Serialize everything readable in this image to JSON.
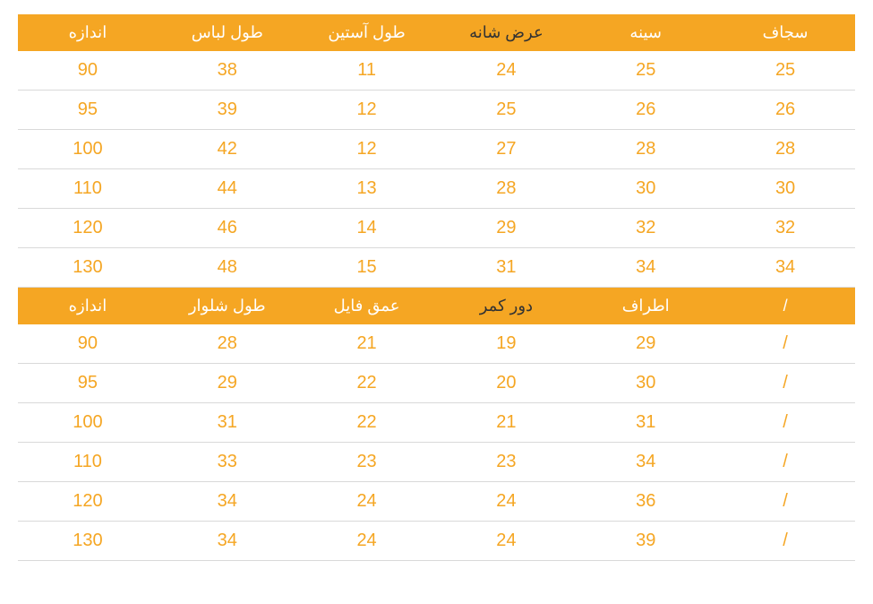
{
  "colors": {
    "header_bg": "#f5a623",
    "header_text": "#ffffff",
    "header_text_dark": "#333333",
    "cell_text": "#f5a623",
    "row_border": "#d9d9d9",
    "background": "#ffffff"
  },
  "typography": {
    "header_fontsize": 18,
    "cell_fontsize": 20,
    "font_family": "Tahoma, Arial, sans-serif"
  },
  "table1": {
    "type": "table",
    "headers": [
      {
        "label": "اندازه",
        "dark": false
      },
      {
        "label": "طول لباس",
        "dark": false
      },
      {
        "label": "طول آستین",
        "dark": false
      },
      {
        "label": "عرض شانه",
        "dark": true
      },
      {
        "label": "سینه",
        "dark": false
      },
      {
        "label": "سجاف",
        "dark": false
      }
    ],
    "rows": [
      [
        "90",
        "38",
        "11",
        "24",
        "25",
        "25"
      ],
      [
        "95",
        "39",
        "12",
        "25",
        "26",
        "26"
      ],
      [
        "100",
        "42",
        "12",
        "27",
        "28",
        "28"
      ],
      [
        "110",
        "44",
        "13",
        "28",
        "30",
        "30"
      ],
      [
        "120",
        "46",
        "14",
        "29",
        "32",
        "32"
      ],
      [
        "130",
        "48",
        "15",
        "31",
        "34",
        "34"
      ]
    ]
  },
  "table2": {
    "type": "table",
    "headers": [
      {
        "label": "اندازه",
        "dark": false
      },
      {
        "label": "طول شلوار",
        "dark": false
      },
      {
        "label": "عمق فایل",
        "dark": false
      },
      {
        "label": "دور کمر",
        "dark": true
      },
      {
        "label": "اطراف",
        "dark": false
      },
      {
        "label": "/",
        "dark": false
      }
    ],
    "rows": [
      [
        "90",
        "28",
        "21",
        "19",
        "29",
        "/"
      ],
      [
        "95",
        "29",
        "22",
        "20",
        "30",
        "/"
      ],
      [
        "100",
        "31",
        "22",
        "21",
        "31",
        "/"
      ],
      [
        "110",
        "33",
        "23",
        "23",
        "34",
        "/"
      ],
      [
        "120",
        "34",
        "24",
        "24",
        "36",
        "/"
      ],
      [
        "130",
        "34",
        "24",
        "24",
        "39",
        "/"
      ]
    ]
  }
}
